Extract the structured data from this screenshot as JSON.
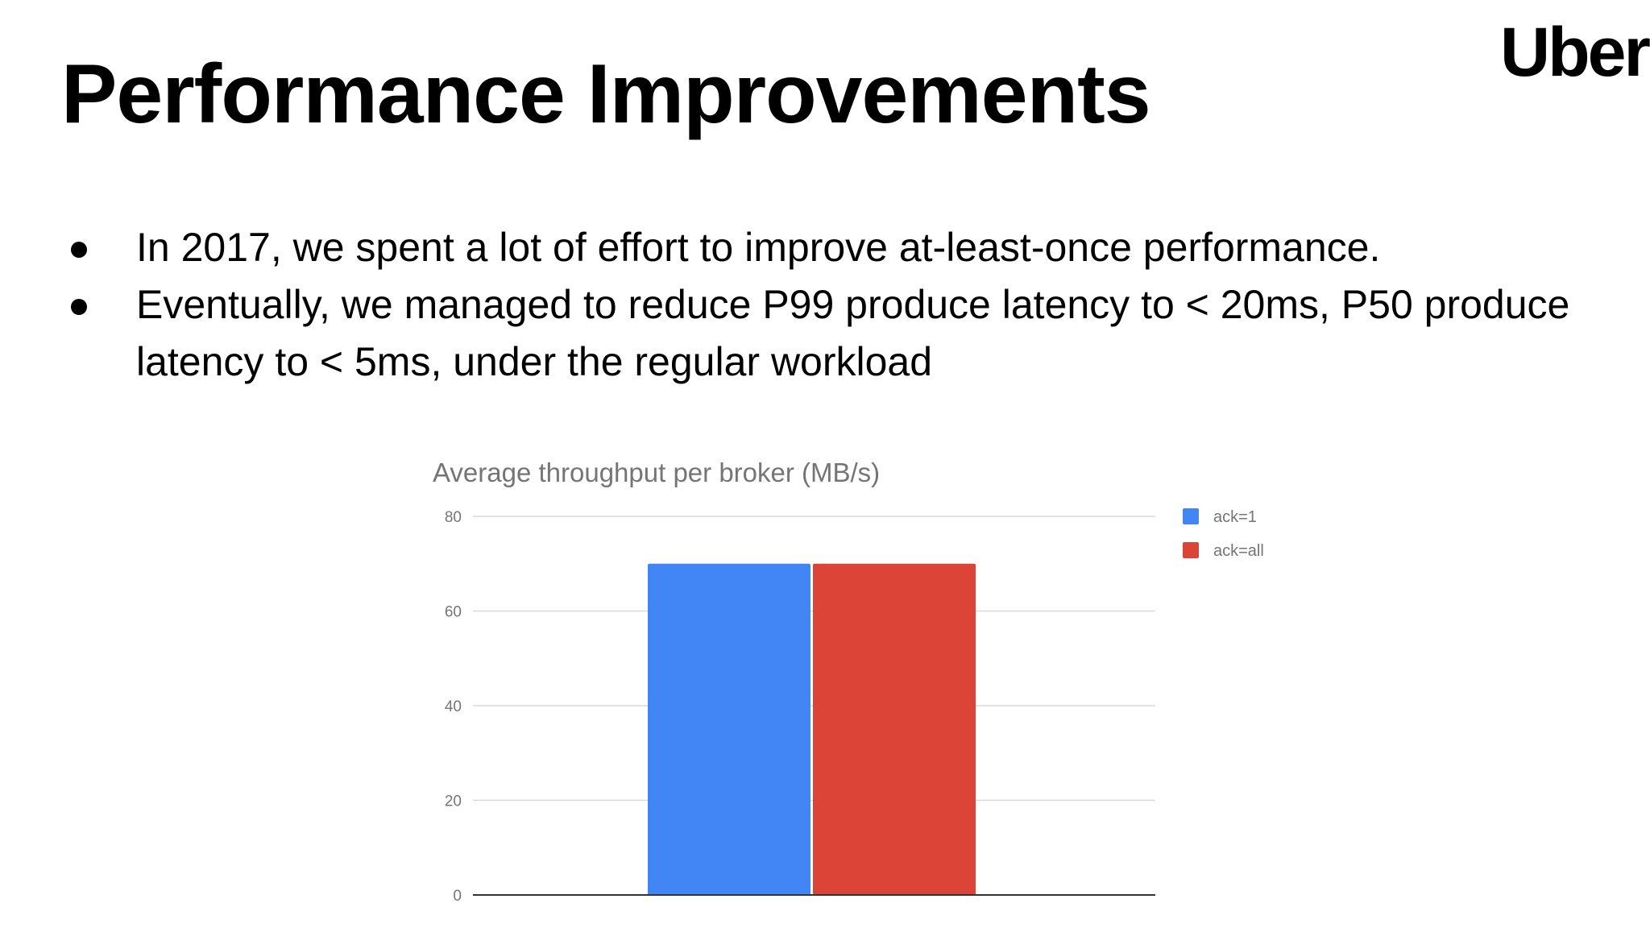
{
  "slide": {
    "title": "Performance Improvements",
    "logo_text": "Uber",
    "bullets": [
      "In 2017, we spent a lot of effort to improve at-least-once performance.",
      "Eventually, we managed to reduce P99 produce latency to < 20ms, P50 produce latency to < 5ms, under the regular workload"
    ]
  },
  "chart_data": {
    "type": "bar",
    "title": "Average throughput per broker (MB/s)",
    "categories": [
      ""
    ],
    "series": [
      {
        "name": "ack=1",
        "values": [
          70
        ],
        "color": "#4285F4"
      },
      {
        "name": "ack=all",
        "values": [
          70
        ],
        "color": "#DB4437"
      }
    ],
    "ylim": [
      0,
      80
    ],
    "yticks": [
      "0",
      "20",
      "40",
      "60",
      "80"
    ],
    "grid": true,
    "legend_position": "right"
  }
}
